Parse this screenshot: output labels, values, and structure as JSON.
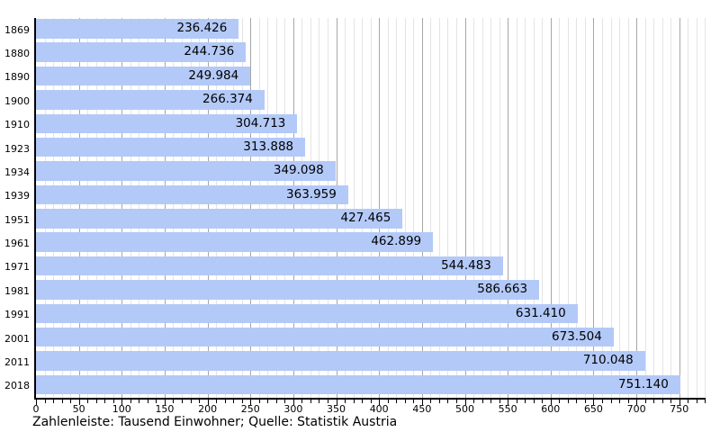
{
  "chart_data": {
    "type": "bar",
    "orientation": "horizontal",
    "title": "",
    "xlabel": "",
    "ylabel": "",
    "unit": "Tausend Einwohner",
    "categories": [
      "1869",
      "1880",
      "1890",
      "1900",
      "1910",
      "1923",
      "1934",
      "1939",
      "1951",
      "1961",
      "1971",
      "1981",
      "1991",
      "2001",
      "2011",
      "2018"
    ],
    "values": [
      236.426,
      244.736,
      249.984,
      266.374,
      304.713,
      313.888,
      349.098,
      363.959,
      427.465,
      462.899,
      544.483,
      586.663,
      631.41,
      673.504,
      710.048,
      751.14
    ],
    "value_labels": [
      "236.426",
      "244.736",
      "249.984",
      "266.374",
      "304.713",
      "313.888",
      "349.098",
      "363.959",
      "427.465",
      "462.899",
      "544.483",
      "586.663",
      "631.410",
      "673.504",
      "710.048",
      "751.140"
    ],
    "xlim": [
      0,
      780
    ],
    "x_major_tick_step": 50,
    "x_minor_tick_step": 10,
    "x_major_tick_labels": [
      "0",
      "50",
      "100",
      "150",
      "200",
      "250",
      "300",
      "350",
      "400",
      "450",
      "500",
      "550",
      "600",
      "650",
      "700",
      "750"
    ],
    "grid": true,
    "legend": "none",
    "caption": "Zahlenleiste: Tausend Einwohner; Quelle: Statistik Austria",
    "colors": {
      "bar_fill": "#b3c9f8",
      "minor_gridline": "#e4e4e4",
      "major_gridline": "#a6a6a6",
      "axis": "#000000",
      "text": "#000000",
      "background": "#ffffff"
    }
  }
}
